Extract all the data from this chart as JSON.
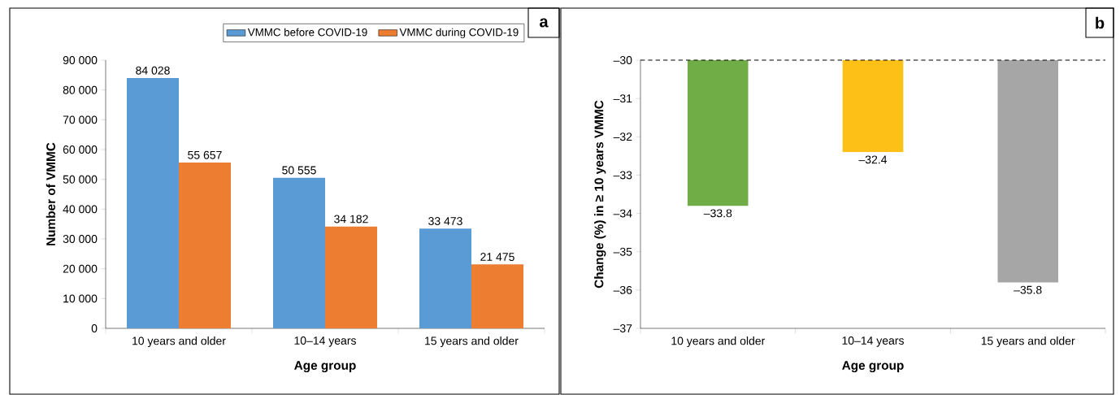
{
  "chart_data": [
    {
      "type": "bar",
      "categories": [
        "10 years and older",
        "10–14 years",
        "15 years and older"
      ],
      "series": [
        {
          "name": "VMMC before COVID-19",
          "color": "#5b9bd5",
          "values": [
            84028,
            50555,
            33473
          ],
          "value_labels": [
            "84 028",
            "50 555",
            "33 473"
          ]
        },
        {
          "name": "VMMC during COVID-19",
          "color": "#ed7d31",
          "values": [
            55657,
            34182,
            21475
          ],
          "value_labels": [
            "55 657",
            "34 182",
            "21 475"
          ]
        }
      ],
      "xlabel": "Age group",
      "ylabel": "Number of VMMC",
      "ylim": [
        0,
        90000
      ],
      "yticks": [
        0,
        {
          "value": 10000,
          "label": "10 000"
        },
        {
          "value": 20000,
          "label": "20 000"
        },
        {
          "value": 30000,
          "label": "30 000"
        },
        {
          "value": 40000,
          "label": "40 000"
        },
        {
          "value": 50000,
          "label": "50 000"
        },
        {
          "value": 60000,
          "label": "60 000"
        },
        {
          "value": 70000,
          "label": "70 000"
        },
        {
          "value": 80000,
          "label": "80 000"
        },
        {
          "value": 90000,
          "label": "90 000"
        }
      ],
      "legend": "top right",
      "annotations": [
        "a"
      ]
    },
    {
      "type": "bar",
      "categories": [
        "10 years and older",
        "10–14 years",
        "15 years and older"
      ],
      "values": [
        -33.8,
        -32.4,
        -35.8
      ],
      "colors": [
        "#70ad47",
        "#fcc016",
        "#a6a6a6"
      ],
      "value_labels": [
        "–33.8",
        "–32.4",
        "–35.8"
      ],
      "xlabel": "Age group",
      "ylabel": "Change (%) in ≥ 10 years VMMC",
      "ylim": [
        -37,
        -30
      ],
      "yticks": [
        {
          "value": -37,
          "label": "–37"
        },
        {
          "value": -36,
          "label": "–36"
        },
        {
          "value": -35,
          "label": "–35"
        },
        {
          "value": -34,
          "label": "–34"
        },
        {
          "value": -33,
          "label": "–33"
        },
        {
          "value": -32,
          "label": "–32"
        },
        {
          "value": -31,
          "label": "–31"
        },
        {
          "value": -30,
          "label": "–30"
        }
      ],
      "ref_lines": [
        {
          "axis": "y",
          "value": -30,
          "line_style": "dashed"
        }
      ],
      "annotations": [
        "b"
      ]
    }
  ]
}
